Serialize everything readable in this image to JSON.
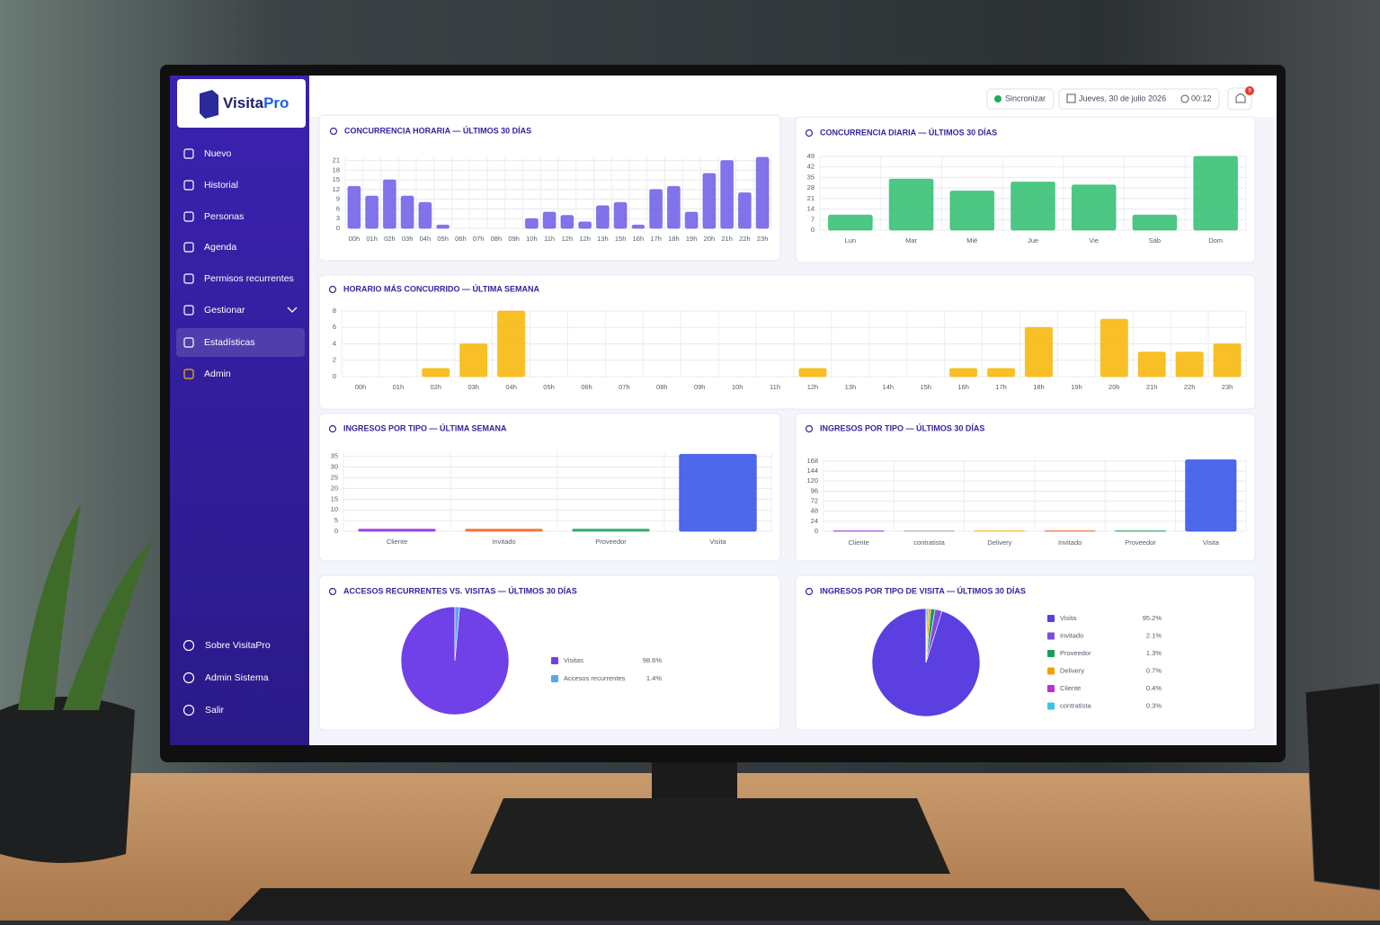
{
  "sidebar": {
    "brand": {
      "main": "Visita",
      "accent": "Pro"
    },
    "menu": [
      "Nuevo",
      "Historial",
      "Personas",
      "Agenda",
      "Permisos recurrentes",
      "Gestionar",
      "Estadísticas",
      "Admin"
    ],
    "active": "Estadísticas",
    "footer": [
      "Sobre VisitaPro",
      "Admin Sistema",
      "Salir"
    ]
  },
  "header": {
    "sync": "Sincronizar",
    "date": "Jueves, 30 de julio 2026",
    "time": "00:12",
    "notifications": "9"
  },
  "chart_data": [
    {
      "type": "bar",
      "title": "CONCURRENCIA HORARIA — ÚLTIMOS 30 DÍAS",
      "color": "#6b5ce7",
      "grid": true,
      "categories": [
        "00h",
        "01h",
        "02h",
        "03h",
        "04h",
        "05h",
        "06h",
        "07h",
        "08h",
        "09h",
        "10h",
        "11h",
        "12h",
        "12h",
        "13h",
        "15h",
        "16h",
        "17h",
        "18h",
        "19h",
        "20h",
        "21h",
        "22h",
        "23h"
      ],
      "values": [
        13,
        10,
        15,
        10,
        8,
        1,
        0,
        0,
        0,
        0,
        3,
        5,
        4,
        2,
        7,
        8,
        1,
        12,
        13,
        5,
        17,
        21,
        11,
        22
      ],
      "ylim": [
        0,
        22
      ],
      "yticks": [
        0,
        3,
        6,
        9,
        12,
        15,
        18,
        21
      ]
    },
    {
      "type": "bar",
      "title": "CONCURRENCIA DIARIA — ÚLTIMOS 30 DÍAS",
      "color": "#2dbd6e",
      "grid": true,
      "categories": [
        "Lun",
        "Mar",
        "Mié",
        "Jue",
        "Vie",
        "Sáb",
        "Dom"
      ],
      "values": [
        10,
        34,
        26,
        32,
        30,
        10,
        49
      ],
      "ylim": [
        0,
        49
      ],
      "yticks": [
        0,
        7,
        14,
        21,
        28,
        35,
        42,
        49
      ]
    },
    {
      "type": "bar",
      "title": "HORARIO MÁS CONCURRIDO — ÚLTIMA SEMANA",
      "color": "#f7b500",
      "grid": true,
      "categories": [
        "00h",
        "01h",
        "02h",
        "03h",
        "04h",
        "05h",
        "06h",
        "07h",
        "08h",
        "09h",
        "10h",
        "11h",
        "12h",
        "13h",
        "14h",
        "15h",
        "16h",
        "17h",
        "18h",
        "19h",
        "20h",
        "21h",
        "22h",
        "23h"
      ],
      "values": [
        0,
        0,
        1,
        4,
        8,
        0,
        0,
        0,
        0,
        0,
        0,
        0,
        1,
        0,
        0,
        0,
        1,
        1,
        6,
        0,
        7,
        3,
        3,
        4
      ],
      "ylim": [
        0,
        8
      ],
      "yticks": [
        0,
        2,
        4,
        6,
        8
      ]
    },
    {
      "type": "bar",
      "title": "INGRESOS POR TIPO — ÚLTIMA SEMANA",
      "grid": true,
      "categories": [
        "Cliente",
        "Invitado",
        "Proveedor",
        "Visita"
      ],
      "colors": [
        "#8a2be2",
        "#f26522",
        "#1a9e5a",
        "#2f4ee8"
      ],
      "values": [
        1,
        1,
        1,
        36
      ],
      "ylim": [
        0,
        37
      ],
      "yticks": [
        0,
        5,
        10,
        15,
        20,
        25,
        30,
        35
      ]
    },
    {
      "type": "bar",
      "title": "INGRESOS POR TIPO — ÚLTIMOS 30 DÍAS",
      "grid": true,
      "categories": [
        "Cliente",
        "contratista",
        "Delivery",
        "Invitado",
        "Proveedor",
        "Visita"
      ],
      "colors": [
        "#9b30d9",
        "#a8a8a8",
        "#f5b800",
        "#f26522",
        "#1a9e5a",
        "#2f4ee8"
      ],
      "values": [
        1,
        1,
        1,
        1,
        1,
        171
      ],
      "ylim": [
        0,
        172
      ],
      "yticks": [
        0,
        24,
        48,
        72,
        96,
        120,
        144,
        168
      ]
    },
    {
      "type": "pie",
      "title": "ACCESOS RECURRENTES VS. VISITAS — ÚLTIMOS 30 DÍAS",
      "categories": [
        "Visitas",
        "Accesos recurrentes"
      ],
      "colors": [
        "#7040e8",
        "#5aa9f0"
      ],
      "values": [
        98.6,
        1.4
      ],
      "value_labels": [
        "98.6%",
        "1.4%"
      ]
    },
    {
      "type": "pie",
      "title": "INGRESOS POR TIPO DE VISITA — ÚLTIMOS 30 DÍAS",
      "categories": [
        "Visita",
        "Invitado",
        "Proveedor",
        "Delivery",
        "Cliente",
        "contratista"
      ],
      "colors": [
        "#5b3fe0",
        "#7c4ddf",
        "#1a9e5a",
        "#f5a000",
        "#c02fd6",
        "#3cc3e6"
      ],
      "values": [
        95.2,
        2.1,
        1.3,
        0.7,
        0.4,
        0.3
      ],
      "value_labels": [
        "95.2%",
        "2.1%",
        "1.3%",
        "0.7%",
        "0.4%",
        "0.3%"
      ]
    }
  ]
}
